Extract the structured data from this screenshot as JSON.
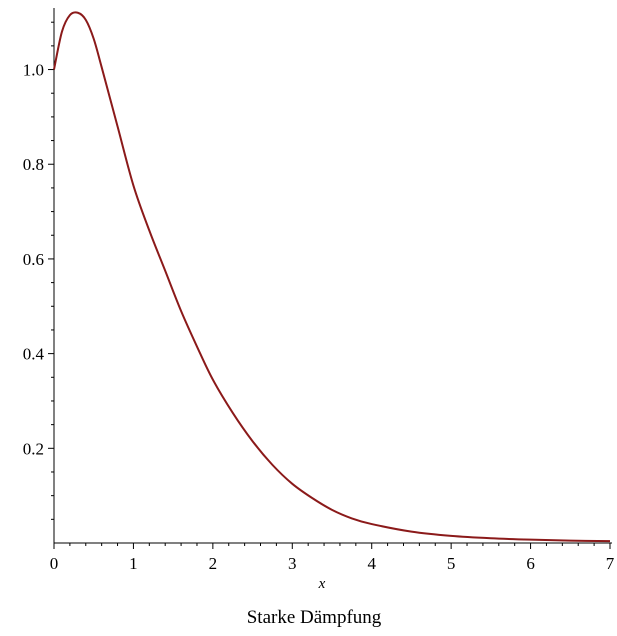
{
  "chart_data": {
    "type": "line",
    "title": "",
    "caption": "Starke Dämpfung",
    "xlabel": "x",
    "ylabel": "",
    "xlim": [
      0,
      7
    ],
    "ylim": [
      0,
      1.13
    ],
    "x_ticks": [
      0,
      1,
      2,
      3,
      4,
      5,
      6,
      7
    ],
    "x_tick_labels": [
      "0",
      "1",
      "2",
      "3",
      "4",
      "5",
      "6",
      "7"
    ],
    "y_ticks": [
      0.2,
      0.4,
      0.6,
      0.8,
      1.0
    ],
    "y_tick_labels": [
      "0.2",
      "0.4",
      "0.6",
      "0.8",
      "1.0"
    ],
    "grid": false,
    "legend": "none",
    "series": [
      {
        "color": "#8b1a1a",
        "x": [
          0,
          0.1,
          0.2,
          0.3,
          0.4,
          0.5,
          0.6,
          0.8,
          1.0,
          1.2,
          1.4,
          1.6,
          1.8,
          2.0,
          2.25,
          2.5,
          2.75,
          3.0,
          3.25,
          3.5,
          3.75,
          4.0,
          4.5,
          5.0,
          5.5,
          6.0,
          6.5,
          7.0
        ],
        "y": [
          1.0,
          1.08,
          1.115,
          1.12,
          1.105,
          1.065,
          1.005,
          0.88,
          0.755,
          0.66,
          0.575,
          0.49,
          0.415,
          0.345,
          0.275,
          0.215,
          0.165,
          0.125,
          0.095,
          0.07,
          0.052,
          0.04,
          0.024,
          0.015,
          0.01,
          0.007,
          0.005,
          0.004
        ]
      }
    ]
  }
}
